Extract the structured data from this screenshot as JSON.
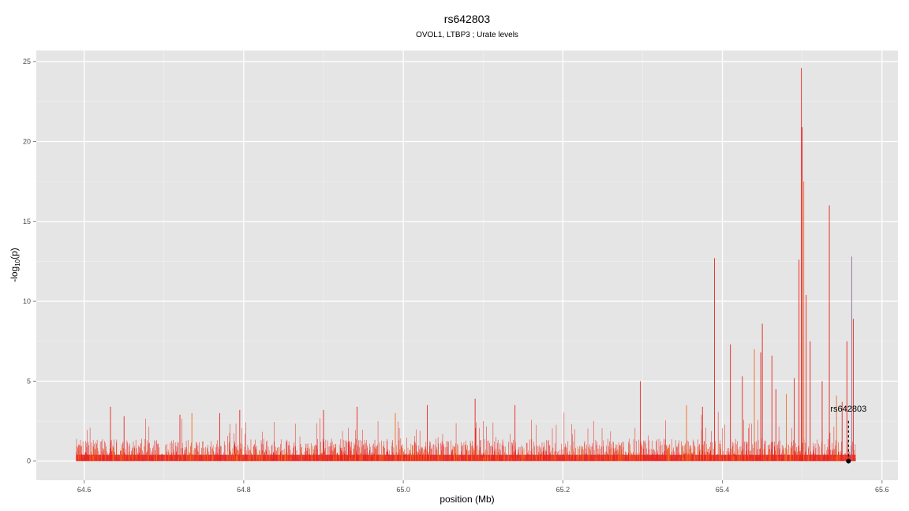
{
  "chart_data": {
    "type": "line",
    "title": "rs642803",
    "subtitle": "OVOL1, LTBP3 ; Urate levels",
    "xlabel": "position (Mb)",
    "ylabel_main": "-log",
    "ylabel_sub": "10",
    "ylabel_paren": "(p)",
    "xlim": [
      64.54,
      65.62
    ],
    "ylim": [
      -1.2,
      25.7
    ],
    "xticks": [
      64.6,
      64.8,
      65.0,
      65.2,
      65.4,
      65.6
    ],
    "xtick_labels": [
      "64.6",
      "64.8",
      "65.0",
      "65.2",
      "65.4",
      "65.6"
    ],
    "yticks": [
      0,
      5,
      10,
      15,
      20,
      25
    ],
    "ytick_labels": [
      "0",
      "5",
      "10",
      "15",
      "20",
      "25"
    ],
    "grid": true,
    "background": "#e5e5e5",
    "colors": {
      "primary": "#e8231e",
      "secondary": "#f26b1d",
      "tertiary": "#8a6d8f"
    },
    "x_range_data": [
      64.59,
      65.567
    ],
    "peaks": [
      {
        "x": 64.633,
        "y": 3.4
      },
      {
        "x": 64.65,
        "y": 2.8
      },
      {
        "x": 64.72,
        "y": 2.9
      },
      {
        "x": 64.735,
        "y": 3.0
      },
      {
        "x": 64.77,
        "y": 3.0
      },
      {
        "x": 64.795,
        "y": 3.2
      },
      {
        "x": 64.9,
        "y": 3.2
      },
      {
        "x": 64.942,
        "y": 3.4
      },
      {
        "x": 64.99,
        "y": 3.0
      },
      {
        "x": 65.03,
        "y": 3.5
      },
      {
        "x": 65.09,
        "y": 3.9
      },
      {
        "x": 65.14,
        "y": 3.5
      },
      {
        "x": 65.297,
        "y": 5.0
      },
      {
        "x": 65.355,
        "y": 3.5
      },
      {
        "x": 65.375,
        "y": 3.4
      },
      {
        "x": 65.39,
        "y": 12.7
      },
      {
        "x": 65.41,
        "y": 7.3
      },
      {
        "x": 65.425,
        "y": 5.3
      },
      {
        "x": 65.44,
        "y": 7.0
      },
      {
        "x": 65.448,
        "y": 6.8
      },
      {
        "x": 65.45,
        "y": 8.6
      },
      {
        "x": 65.462,
        "y": 6.6
      },
      {
        "x": 65.467,
        "y": 4.5
      },
      {
        "x": 65.48,
        "y": 4.2
      },
      {
        "x": 65.49,
        "y": 5.2
      },
      {
        "x": 65.496,
        "y": 12.6
      },
      {
        "x": 65.499,
        "y": 24.6
      },
      {
        "x": 65.5,
        "y": 20.9
      },
      {
        "x": 65.502,
        "y": 17.5
      },
      {
        "x": 65.505,
        "y": 10.4
      },
      {
        "x": 65.51,
        "y": 7.5
      },
      {
        "x": 65.525,
        "y": 5.0
      },
      {
        "x": 65.534,
        "y": 16.0
      },
      {
        "x": 65.543,
        "y": 4.1
      },
      {
        "x": 65.55,
        "y": 3.7
      },
      {
        "x": 65.556,
        "y": 7.5
      },
      {
        "x": 65.562,
        "y": 12.8
      },
      {
        "x": 65.564,
        "y": 8.9
      }
    ],
    "annotation": {
      "label": "rs642803",
      "x": 65.558,
      "y": 0
    }
  }
}
